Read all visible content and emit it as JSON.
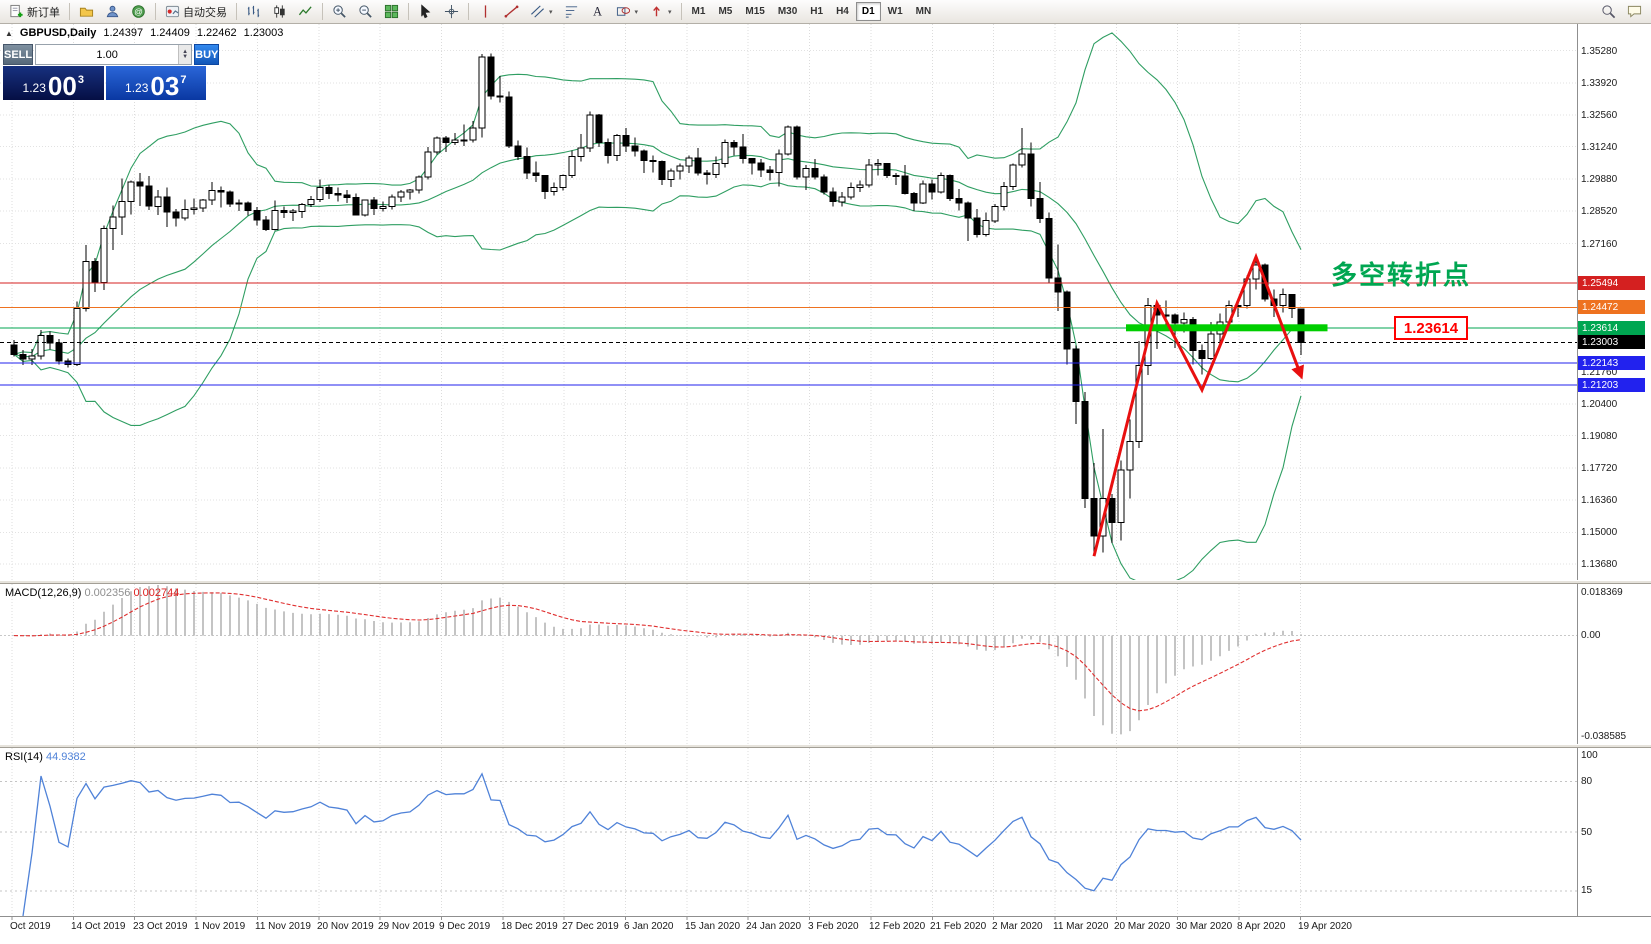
{
  "toolbar": {
    "new_order": "新订单",
    "auto_trading": "自动交易",
    "timeframes": [
      "M1",
      "M5",
      "M15",
      "M30",
      "H1",
      "H4",
      "D1",
      "W1",
      "MN"
    ],
    "active_timeframe": "D1",
    "icon_names": [
      "new-order-icon",
      "profiles-icon",
      "accounts-icon",
      "help-icon",
      "auto-trading-icon",
      "bar-chart-icon",
      "candlestick-chart-icon",
      "line-chart-icon",
      "zoom-in-icon",
      "zoom-out-icon",
      "tile-windows-icon",
      "cursor-icon",
      "crosshair-icon",
      "vertical-line-icon",
      "trendline-icon",
      "channel-icon",
      "fibonacci-icon",
      "text-icon",
      "shapes-icon",
      "arrows-icon",
      "search-icon",
      "feedback-icon"
    ]
  },
  "chart": {
    "header": {
      "symbol": "GBPUSD,Daily",
      "open": "1.24397",
      "high": "1.24409",
      "low": "1.22462",
      "close": "1.23003"
    },
    "one_click": {
      "sell_label": "SELL",
      "buy_label": "BUY",
      "volume": "1.00",
      "sell_price": {
        "base": "1.23",
        "big": "00",
        "sup": "3"
      },
      "buy_price": {
        "base": "1.23",
        "big": "03",
        "sup": "7"
      }
    },
    "price_axis_ticks": [
      {
        "price": 1.3528,
        "label": "1.35280"
      },
      {
        "price": 1.3392,
        "label": "1.33920"
      },
      {
        "price": 1.3256,
        "label": "1.32560"
      },
      {
        "price": 1.3124,
        "label": "1.31240"
      },
      {
        "price": 1.2988,
        "label": "1.29880"
      },
      {
        "price": 1.2852,
        "label": "1.28520"
      },
      {
        "price": 1.2716,
        "label": "1.27160"
      },
      {
        "price": 1.204,
        "label": "1.20400"
      },
      {
        "price": 1.1908,
        "label": "1.19080"
      },
      {
        "price": 1.1772,
        "label": "1.17720"
      },
      {
        "price": 1.1636,
        "label": "1.16360"
      },
      {
        "price": 1.15,
        "label": "1.15000"
      },
      {
        "price": 1.1368,
        "label": "1.13680"
      }
    ],
    "levels": [
      {
        "price": 1.25494,
        "label": "1.25494",
        "color": "#d42020",
        "style": "solid"
      },
      {
        "price": 1.24472,
        "label": "1.24472",
        "color": "#ee7220",
        "style": "solid"
      },
      {
        "price": 1.23614,
        "label": "1.23614",
        "color": "#00a651",
        "style": "solid"
      },
      {
        "price": 1.23003,
        "label": "1.23003",
        "color": "#000000",
        "style": "dashed"
      },
      {
        "price": 1.22143,
        "label": "1.22143",
        "color": "#2222ee",
        "style": "solid"
      },
      {
        "price": 1.2176,
        "label": "1.21760",
        "color": "#555555",
        "style": "tick"
      },
      {
        "price": 1.21203,
        "label": "1.21203",
        "color": "#2222ee",
        "style": "solid"
      }
    ],
    "annotations": {
      "turning_point": {
        "text": "多空转折点",
        "color": "#00a651"
      },
      "price_box": {
        "text": "1.23614",
        "color": "#ff0000"
      },
      "support_bar": {
        "price": 1.23614,
        "from_index": 124,
        "to_index": 145.5,
        "color": "#00cе00",
        "color_fix": "#00ce00"
      },
      "zigzag": {
        "color": "#e81010",
        "points": [
          [
            120,
            1.14
          ],
          [
            127,
            1.2465
          ],
          [
            132,
            1.21
          ],
          [
            138,
            1.266
          ],
          [
            143,
            1.216
          ]
        ]
      }
    }
  },
  "chart_data": {
    "type": "candlestick",
    "symbol": "GBPUSD",
    "timeframe": "Daily",
    "price_range_top": 1.364,
    "price_range_bottom": 1.13,
    "bollinger": {
      "period": 20,
      "deviation": 2,
      "color": "#2f9e62"
    },
    "candles": [
      [
        1.229,
        1.231,
        1.224,
        1.225
      ],
      [
        1.225,
        1.2268,
        1.2204,
        1.223
      ],
      [
        1.223,
        1.2272,
        1.2205,
        1.2242
      ],
      [
        1.2242,
        1.2352,
        1.2228,
        1.233
      ],
      [
        1.233,
        1.2345,
        1.227,
        1.2297
      ],
      [
        1.2297,
        1.2315,
        1.2206,
        1.2222
      ],
      [
        1.2222,
        1.2232,
        1.2194,
        1.2207
      ],
      [
        1.2207,
        1.2472,
        1.22,
        1.2442
      ],
      [
        1.2442,
        1.271,
        1.243,
        1.264
      ],
      [
        1.264,
        1.2656,
        1.2513,
        1.2552
      ],
      [
        1.2552,
        1.2792,
        1.252,
        1.278
      ],
      [
        1.278,
        1.2877,
        1.2688,
        1.2827
      ],
      [
        1.2827,
        1.299,
        1.2753,
        1.2892
      ],
      [
        1.2892,
        1.2982,
        1.2838,
        1.2975
      ],
      [
        1.2975,
        1.3012,
        1.2874,
        1.2958
      ],
      [
        1.2958,
        1.3,
        1.2858,
        1.2873
      ],
      [
        1.2873,
        1.2942,
        1.2836,
        1.2912
      ],
      [
        1.2912,
        1.2952,
        1.2786,
        1.2848
      ],
      [
        1.2848,
        1.2862,
        1.2788,
        1.2824
      ],
      [
        1.2824,
        1.2902,
        1.2814,
        1.286
      ],
      [
        1.286,
        1.2906,
        1.2838,
        1.2866
      ],
      [
        1.2866,
        1.2904,
        1.2848,
        1.29
      ],
      [
        1.29,
        1.2976,
        1.2878,
        1.294
      ],
      [
        1.294,
        1.2956,
        1.2868,
        1.2932
      ],
      [
        1.2932,
        1.294,
        1.287,
        1.2882
      ],
      [
        1.2882,
        1.2902,
        1.2853,
        1.2886
      ],
      [
        1.2886,
        1.2892,
        1.2834,
        1.2856
      ],
      [
        1.2856,
        1.287,
        1.2793,
        1.2816
      ],
      [
        1.2816,
        1.2832,
        1.2768,
        1.2776
      ],
      [
        1.2776,
        1.2898,
        1.277,
        1.2856
      ],
      [
        1.2856,
        1.2872,
        1.2824,
        1.2846
      ],
      [
        1.2846,
        1.2862,
        1.281,
        1.2852
      ],
      [
        1.2852,
        1.2886,
        1.2824,
        1.288
      ],
      [
        1.288,
        1.2916,
        1.287,
        1.2902
      ],
      [
        1.2902,
        1.2986,
        1.289,
        1.2952
      ],
      [
        1.2952,
        1.2962,
        1.2904,
        1.2926
      ],
      [
        1.2926,
        1.2952,
        1.2894,
        1.292
      ],
      [
        1.292,
        1.2942,
        1.2886,
        1.291
      ],
      [
        1.291,
        1.2926,
        1.2833,
        1.2836
      ],
      [
        1.2836,
        1.2902,
        1.283,
        1.29
      ],
      [
        1.29,
        1.2912,
        1.2836,
        1.2863
      ],
      [
        1.2863,
        1.2892,
        1.285,
        1.2871
      ],
      [
        1.2871,
        1.2922,
        1.286,
        1.2912
      ],
      [
        1.2912,
        1.2942,
        1.289,
        1.2932
      ],
      [
        1.2932,
        1.2946,
        1.2902,
        1.2941
      ],
      [
        1.2941,
        1.3002,
        1.2926,
        1.2996
      ],
      [
        1.2996,
        1.3122,
        1.2986,
        1.3102
      ],
      [
        1.3102,
        1.3166,
        1.309,
        1.3161
      ],
      [
        1.3161,
        1.3168,
        1.3102,
        1.3142
      ],
      [
        1.3142,
        1.3182,
        1.313,
        1.3152
      ],
      [
        1.3152,
        1.3216,
        1.3126,
        1.3152
      ],
      [
        1.3152,
        1.3232,
        1.3142,
        1.3202
      ],
      [
        1.3202,
        1.3514,
        1.3162,
        1.3502
      ],
      [
        1.3502,
        1.3515,
        1.3322,
        1.3336
      ],
      [
        1.3336,
        1.3422,
        1.331,
        1.3332
      ],
      [
        1.3332,
        1.3356,
        1.3118,
        1.3126
      ],
      [
        1.3126,
        1.315,
        1.3068,
        1.3082
      ],
      [
        1.3082,
        1.312,
        1.2988,
        1.3012
      ],
      [
        1.3012,
        1.3062,
        1.2976,
        1.3002
      ],
      [
        1.3002,
        1.3004,
        1.2904,
        1.2936
      ],
      [
        1.2936,
        1.2972,
        1.2918,
        1.2952
      ],
      [
        1.2952,
        1.3006,
        1.294,
        1.3002
      ],
      [
        1.3002,
        1.3108,
        1.2992,
        1.3082
      ],
      [
        1.3082,
        1.3178,
        1.3062,
        1.3118
      ],
      [
        1.3118,
        1.3272,
        1.3102,
        1.3258
      ],
      [
        1.3258,
        1.3262,
        1.3122,
        1.3142
      ],
      [
        1.3142,
        1.3158,
        1.3052,
        1.3086
      ],
      [
        1.3086,
        1.3178,
        1.3064,
        1.317
      ],
      [
        1.317,
        1.3202,
        1.3102,
        1.3126
      ],
      [
        1.3126,
        1.3162,
        1.3082,
        1.3106
      ],
      [
        1.3106,
        1.3112,
        1.3012,
        1.3066
      ],
      [
        1.3066,
        1.3086,
        1.3014,
        1.3062
      ],
      [
        1.3062,
        1.3066,
        1.2962,
        1.2986
      ],
      [
        1.2986,
        1.3032,
        1.2954,
        1.3022
      ],
      [
        1.3022,
        1.3052,
        1.2986,
        1.3042
      ],
      [
        1.3042,
        1.3086,
        1.3012,
        1.3076
      ],
      [
        1.3076,
        1.3118,
        1.3002,
        1.3012
      ],
      [
        1.3012,
        1.3026,
        1.2964,
        1.3006
      ],
      [
        1.3006,
        1.3082,
        1.2992,
        1.3052
      ],
      [
        1.3052,
        1.3154,
        1.3036,
        1.3142
      ],
      [
        1.3142,
        1.3152,
        1.3086,
        1.3122
      ],
      [
        1.3122,
        1.3178,
        1.3052,
        1.3074
      ],
      [
        1.3074,
        1.3076,
        1.3006,
        1.3056
      ],
      [
        1.3056,
        1.3072,
        1.2996,
        1.3026
      ],
      [
        1.3026,
        1.3042,
        1.2982,
        1.3016
      ],
      [
        1.3016,
        1.3112,
        1.2956,
        1.3092
      ],
      [
        1.3092,
        1.3212,
        1.3086,
        1.3206
      ],
      [
        1.3206,
        1.3212,
        1.2986,
        1.2996
      ],
      [
        1.2996,
        1.3046,
        1.2942,
        1.3032
      ],
      [
        1.3032,
        1.3072,
        1.2986,
        1.2996
      ],
      [
        1.2996,
        1.3006,
        1.2922,
        1.2932
      ],
      [
        1.2932,
        1.2952,
        1.2872,
        1.2892
      ],
      [
        1.2892,
        1.2932,
        1.2872,
        1.2912
      ],
      [
        1.2912,
        1.2972,
        1.2902,
        1.2952
      ],
      [
        1.2952,
        1.2982,
        1.2932,
        1.2962
      ],
      [
        1.2962,
        1.3072,
        1.2952,
        1.3046
      ],
      [
        1.3046,
        1.3072,
        1.3002,
        1.3052
      ],
      [
        1.3052,
        1.3056,
        1.2992,
        1.3002
      ],
      [
        1.3002,
        1.3012,
        1.2962,
        1.3
      ],
      [
        1.3,
        1.3046,
        1.2922,
        1.2926
      ],
      [
        1.2926,
        1.2932,
        1.2852,
        1.2886
      ],
      [
        1.2886,
        1.2982,
        1.2882,
        1.2966
      ],
      [
        1.2966,
        1.2986,
        1.2902,
        1.2932
      ],
      [
        1.2932,
        1.3016,
        1.2926,
        1.3002
      ],
      [
        1.3002,
        1.3006,
        1.2896,
        1.2906
      ],
      [
        1.2906,
        1.2946,
        1.2856,
        1.2886
      ],
      [
        1.2886,
        1.2892,
        1.2726,
        1.2824
      ],
      [
        1.2824,
        1.2862,
        1.2742,
        1.2754
      ],
      [
        1.2754,
        1.2846,
        1.2746,
        1.2812
      ],
      [
        1.2812,
        1.2882,
        1.2802,
        1.2872
      ],
      [
        1.2872,
        1.2976,
        1.2856,
        1.2956
      ],
      [
        1.2956,
        1.3052,
        1.2942,
        1.3046
      ],
      [
        1.3046,
        1.3202,
        1.3036,
        1.3092
      ],
      [
        1.3092,
        1.3142,
        1.2872,
        1.2906
      ],
      [
        1.2906,
        1.2976,
        1.2802,
        1.2822
      ],
      [
        1.2822,
        1.2846,
        1.2552,
        1.2572
      ],
      [
        1.2572,
        1.2712,
        1.2432,
        1.2512
      ],
      [
        1.2512,
        1.2518,
        1.2206,
        1.2272
      ],
      [
        1.2272,
        1.2286,
        1.1956,
        1.2052
      ],
      [
        1.2052,
        1.2092,
        1.1602,
        1.1642
      ],
      [
        1.1642,
        1.1792,
        1.1412,
        1.1486
      ],
      [
        1.1486,
        1.1936,
        1.1416,
        1.1642
      ],
      [
        1.1642,
        1.1662,
        1.1456,
        1.1542
      ],
      [
        1.1542,
        1.1802,
        1.1466,
        1.1762
      ],
      [
        1.1762,
        1.1976,
        1.1642,
        1.1882
      ],
      [
        1.1882,
        1.2306,
        1.1856,
        1.2202
      ],
      [
        1.2202,
        1.2486,
        1.2162,
        1.2456
      ],
      [
        1.2456,
        1.2466,
        1.2272,
        1.2416
      ],
      [
        1.2416,
        1.2476,
        1.2362,
        1.2416
      ],
      [
        1.2416,
        1.2422,
        1.2276,
        1.2382
      ],
      [
        1.2382,
        1.2426,
        1.2342,
        1.2396
      ],
      [
        1.2396,
        1.2406,
        1.2206,
        1.2266
      ],
      [
        1.2266,
        1.2292,
        1.2164,
        1.2232
      ],
      [
        1.2232,
        1.2386,
        1.2226,
        1.2336
      ],
      [
        1.2336,
        1.2422,
        1.2302,
        1.2386
      ],
      [
        1.2386,
        1.2476,
        1.2372,
        1.2456
      ],
      [
        1.2456,
        1.2472,
        1.2406,
        1.2456
      ],
      [
        1.2456,
        1.2582,
        1.2442,
        1.2566
      ],
      [
        1.2566,
        1.2648,
        1.2522,
        1.2626
      ],
      [
        1.2626,
        1.2632,
        1.2472,
        1.2482
      ],
      [
        1.2482,
        1.2522,
        1.2406,
        1.2456
      ],
      [
        1.2456,
        1.2526,
        1.2426,
        1.2502
      ],
      [
        1.2502,
        1.2502,
        1.2402,
        1.2442
      ],
      [
        1.24397,
        1.24409,
        1.22462,
        1.23003
      ]
    ]
  },
  "macd": {
    "label": "MACD(12,26,9)",
    "value_main": "0.002356",
    "value_signal": "0.002744",
    "axis_top": "0.018369",
    "axis_zero": "0.00",
    "axis_bottom": "-0.038585",
    "fast": 12,
    "slow": 26,
    "signal": 9,
    "histogram_color": "#b6b6b6",
    "signal_color": "#e03030"
  },
  "rsi": {
    "label": "RSI(14)",
    "value": "44.9382",
    "period": 14,
    "axis_labels": [
      "100",
      "80",
      "50",
      "15"
    ],
    "levels": [
      80,
      50,
      15
    ],
    "color": "#4f82d8"
  },
  "time_axis": {
    "labels": [
      "Oct 2019",
      "14 Oct 2019",
      "23 Oct 2019",
      "1 Nov 2019",
      "11 Nov 2019",
      "20 Nov 2019",
      "29 Nov 2019",
      "9 Dec 2019",
      "18 Dec 2019",
      "27 Dec 2019",
      "6 Jan 2020",
      "15 Jan 2020",
      "24 Jan 2020",
      "3 Feb 2020",
      "12 Feb 2020",
      "21 Feb 2020",
      "2 Mar 2020",
      "11 Mar 2020",
      "20 Mar 2020",
      "30 Mar 2020",
      "8 Apr 2020",
      "19 Apr 2020"
    ]
  }
}
